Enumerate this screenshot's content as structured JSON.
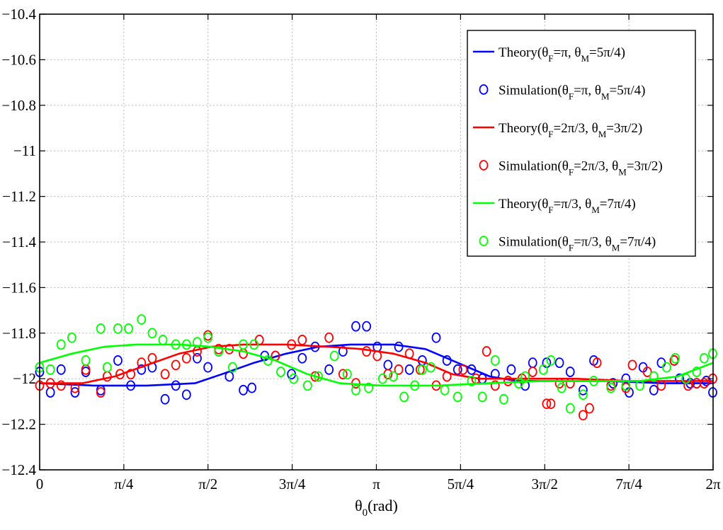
{
  "chart_data": {
    "type": "line",
    "title": "",
    "xlabel": "θ",
    "xlabel_sub": "0",
    "xlabel_unit": "(rad)",
    "ylabel": "",
    "xlim": [
      0,
      6.283185
    ],
    "ylim": [
      -12.4,
      -10.4
    ],
    "grid": true,
    "legend_position": "top-right",
    "x_ticks": [
      {
        "value": 0,
        "label": "0"
      },
      {
        "value": 0.785398,
        "label": "π/4"
      },
      {
        "value": 1.570796,
        "label": "π/2"
      },
      {
        "value": 2.356194,
        "label": "3π/4"
      },
      {
        "value": 3.141593,
        "label": "π"
      },
      {
        "value": 3.926991,
        "label": "5π/4"
      },
      {
        "value": 4.712389,
        "label": "3π/2"
      },
      {
        "value": 5.497787,
        "label": "7π/4"
      },
      {
        "value": 6.283185,
        "label": "2π"
      }
    ],
    "y_ticks": [
      {
        "value": -10.4,
        "label": "−10.4"
      },
      {
        "value": -10.6,
        "label": "−10.6"
      },
      {
        "value": -10.8,
        "label": "−10.8"
      },
      {
        "value": -11,
        "label": "−11"
      },
      {
        "value": -11.2,
        "label": "−11.2"
      },
      {
        "value": -11.4,
        "label": "−11.4"
      },
      {
        "value": -11.6,
        "label": "−11.6"
      },
      {
        "value": -11.8,
        "label": "−11.8"
      },
      {
        "value": -12,
        "label": "−12"
      },
      {
        "value": -12.2,
        "label": "−12.2"
      },
      {
        "value": -12.4,
        "label": "−12.4"
      }
    ],
    "series": [
      {
        "name": "Theory(θF=π, θM=5π/4)",
        "legend": {
          "prefix": "Theory(θ",
          "sub1": "F",
          "mid": "=π, θ",
          "sub2": "M",
          "suffix": "=5π/4)"
        },
        "kind": "line",
        "color": "#0000ff",
        "points": [
          [
            0,
            -12.02
          ],
          [
            0.5,
            -12.03
          ],
          [
            1.0,
            -12.03
          ],
          [
            1.45,
            -12.02
          ],
          [
            1.7,
            -11.98
          ],
          [
            2.0,
            -11.93
          ],
          [
            2.3,
            -11.89
          ],
          [
            2.6,
            -11.86
          ],
          [
            2.9,
            -11.85
          ],
          [
            3.3,
            -11.85
          ],
          [
            3.6,
            -11.87
          ],
          [
            3.9,
            -11.93
          ],
          [
            4.2,
            -11.99
          ],
          [
            4.45,
            -12.01
          ],
          [
            4.8,
            -12.01
          ],
          [
            5.3,
            -12.01
          ],
          [
            5.8,
            -12.02
          ],
          [
            6.283,
            -12.02
          ]
        ]
      },
      {
        "name": "Simulation(θF=π, θM=5π/4)",
        "legend": {
          "prefix": "Simulation(θ",
          "sub1": "F",
          "mid": "=π, θ",
          "sub2": "M",
          "suffix": "=5π/4)"
        },
        "kind": "markers",
        "color": "#0000ff",
        "points": [
          [
            0.0,
            -11.97
          ],
          [
            0.1,
            -12.06
          ],
          [
            0.2,
            -11.96
          ],
          [
            0.33,
            -12.06
          ],
          [
            0.43,
            -11.97
          ],
          [
            0.57,
            -12.05
          ],
          [
            0.73,
            -11.92
          ],
          [
            0.85,
            -12.03
          ],
          [
            0.95,
            -11.96
          ],
          [
            1.05,
            -11.95
          ],
          [
            1.17,
            -12.09
          ],
          [
            1.27,
            -12.03
          ],
          [
            1.37,
            -12.07
          ],
          [
            1.47,
            -11.91
          ],
          [
            1.57,
            -11.95
          ],
          [
            1.67,
            -11.88
          ],
          [
            1.77,
            -11.99
          ],
          [
            1.9,
            -12.05
          ],
          [
            1.98,
            -12.04
          ],
          [
            2.1,
            -11.9
          ],
          [
            2.2,
            -11.9
          ],
          [
            2.35,
            -11.98
          ],
          [
            2.45,
            -11.91
          ],
          [
            2.57,
            -11.86
          ],
          [
            2.7,
            -11.96
          ],
          [
            2.83,
            -11.88
          ],
          [
            2.95,
            -11.77
          ],
          [
            3.05,
            -11.77
          ],
          [
            3.15,
            -11.86
          ],
          [
            3.25,
            -11.94
          ],
          [
            3.35,
            -11.86
          ],
          [
            3.45,
            -11.96
          ],
          [
            3.57,
            -11.92
          ],
          [
            3.7,
            -11.82
          ],
          [
            3.8,
            -11.92
          ],
          [
            3.9,
            -11.96
          ],
          [
            4.03,
            -11.96
          ],
          [
            4.13,
            -12.0
          ],
          [
            4.25,
            -11.98
          ],
          [
            4.4,
            -11.96
          ],
          [
            4.53,
            -12.03
          ],
          [
            4.6,
            -11.93
          ],
          [
            4.73,
            -11.93
          ],
          [
            4.85,
            -11.93
          ],
          [
            4.95,
            -11.97
          ],
          [
            5.07,
            -12.05
          ],
          [
            5.17,
            -11.92
          ],
          [
            5.35,
            -12.02
          ],
          [
            5.47,
            -12.0
          ],
          [
            5.5,
            -12.06
          ],
          [
            5.63,
            -11.95
          ],
          [
            5.73,
            -12.05
          ],
          [
            5.8,
            -11.93
          ],
          [
            5.92,
            -11.92
          ],
          [
            5.97,
            -12.0
          ],
          [
            6.07,
            -12.02
          ],
          [
            6.13,
            -12.02
          ],
          [
            6.22,
            -12.01
          ],
          [
            6.28,
            -12.06
          ]
        ]
      },
      {
        "name": "Theory(θF=2π/3, θM=3π/2)",
        "legend": {
          "prefix": "Theory(θ",
          "sub1": "F",
          "mid": "=2π/3, θ",
          "sub2": "M",
          "suffix": "=3π/2)"
        },
        "kind": "line",
        "color": "#ff0000",
        "points": [
          [
            0,
            -12.02
          ],
          [
            0.4,
            -12.02
          ],
          [
            0.7,
            -11.99
          ],
          [
            1.0,
            -11.94
          ],
          [
            1.3,
            -11.89
          ],
          [
            1.6,
            -11.86
          ],
          [
            1.9,
            -11.85
          ],
          [
            2.3,
            -11.85
          ],
          [
            2.7,
            -11.86
          ],
          [
            3.0,
            -11.87
          ],
          [
            3.3,
            -11.89
          ],
          [
            3.6,
            -11.93
          ],
          [
            3.85,
            -11.98
          ],
          [
            4.1,
            -12.0
          ],
          [
            4.5,
            -12.0
          ],
          [
            5.0,
            -12.0
          ],
          [
            5.5,
            -12.01
          ],
          [
            6.0,
            -12.01
          ],
          [
            6.283,
            -12.01
          ]
        ]
      },
      {
        "name": "Simulation(θF=2π/3, θM=3π/2)",
        "legend": {
          "prefix": "Simulation(θ",
          "sub1": "F",
          "mid": "=2π/3, θ",
          "sub2": "M",
          "suffix": "=3π/2)"
        },
        "kind": "markers",
        "color": "#ff0000",
        "points": [
          [
            0.0,
            -12.03
          ],
          [
            0.1,
            -12.02
          ],
          [
            0.2,
            -12.03
          ],
          [
            0.33,
            -12.04
          ],
          [
            0.43,
            -11.96
          ],
          [
            0.57,
            -12.06
          ],
          [
            0.63,
            -11.99
          ],
          [
            0.75,
            -11.98
          ],
          [
            0.85,
            -11.98
          ],
          [
            0.95,
            -11.93
          ],
          [
            1.05,
            -11.91
          ],
          [
            1.17,
            -11.98
          ],
          [
            1.27,
            -11.94
          ],
          [
            1.37,
            -11.91
          ],
          [
            1.47,
            -11.88
          ],
          [
            1.57,
            -11.81
          ],
          [
            1.67,
            -11.87
          ],
          [
            1.77,
            -11.87
          ],
          [
            1.9,
            -11.89
          ],
          [
            2.05,
            -11.83
          ],
          [
            2.2,
            -11.9
          ],
          [
            2.35,
            -11.85
          ],
          [
            2.45,
            -11.83
          ],
          [
            2.57,
            -11.99
          ],
          [
            2.7,
            -11.82
          ],
          [
            2.83,
            -11.98
          ],
          [
            2.95,
            -12.02
          ],
          [
            3.05,
            -11.88
          ],
          [
            3.15,
            -11.9
          ],
          [
            3.25,
            -11.98
          ],
          [
            3.35,
            -11.96
          ],
          [
            3.45,
            -11.89
          ],
          [
            3.55,
            -11.96
          ],
          [
            3.7,
            -12.03
          ],
          [
            3.8,
            -11.99
          ],
          [
            3.95,
            -11.96
          ],
          [
            4.07,
            -12.0
          ],
          [
            4.17,
            -11.88
          ],
          [
            4.25,
            -12.03
          ],
          [
            4.37,
            -12.01
          ],
          [
            4.5,
            -12.0
          ],
          [
            4.6,
            -11.97
          ],
          [
            4.73,
            -12.11
          ],
          [
            4.77,
            -12.11
          ],
          [
            4.85,
            -12.02
          ],
          [
            4.95,
            -12.02
          ],
          [
            5.07,
            -12.16
          ],
          [
            5.13,
            -12.13
          ],
          [
            5.2,
            -11.93
          ],
          [
            5.33,
            -12.03
          ],
          [
            5.47,
            -12.04
          ],
          [
            5.53,
            -11.94
          ],
          [
            5.67,
            -11.97
          ],
          [
            5.8,
            -12.03
          ],
          [
            5.92,
            -11.92
          ],
          [
            6.05,
            -12.03
          ],
          [
            6.13,
            -12.02
          ],
          [
            6.2,
            -12.02
          ],
          [
            6.28,
            -12.0
          ]
        ]
      },
      {
        "name": "Theory(θF=π/3, θM=7π/4)",
        "legend": {
          "prefix": "Theory(θ",
          "sub1": "F",
          "mid": "=π/3, θ",
          "sub2": "M",
          "suffix": "=7π/4)"
        },
        "kind": "line",
        "color": "#00ff00",
        "points": [
          [
            0,
            -11.93
          ],
          [
            0.3,
            -11.89
          ],
          [
            0.6,
            -11.86
          ],
          [
            0.9,
            -11.85
          ],
          [
            1.3,
            -11.85
          ],
          [
            1.6,
            -11.86
          ],
          [
            1.9,
            -11.88
          ],
          [
            2.2,
            -11.92
          ],
          [
            2.5,
            -11.98
          ],
          [
            2.8,
            -12.02
          ],
          [
            3.2,
            -12.03
          ],
          [
            3.7,
            -12.03
          ],
          [
            4.2,
            -12.02
          ],
          [
            4.7,
            -12.01
          ],
          [
            5.2,
            -12.01
          ],
          [
            5.6,
            -12.01
          ],
          [
            5.95,
            -11.99
          ],
          [
            6.283,
            -11.93
          ]
        ]
      },
      {
        "name": "Simulation(θF=π/3, θM=7π/4)",
        "legend": {
          "prefix": "Simulation(θ",
          "sub1": "F",
          "mid": "=π/3, θ",
          "sub2": "M",
          "suffix": "=7π/4)"
        },
        "kind": "markers",
        "color": "#00ff00",
        "points": [
          [
            0.0,
            -11.95
          ],
          [
            0.1,
            -11.96
          ],
          [
            0.2,
            -11.85
          ],
          [
            0.3,
            -11.82
          ],
          [
            0.43,
            -11.92
          ],
          [
            0.57,
            -11.78
          ],
          [
            0.63,
            -11.95
          ],
          [
            0.73,
            -11.78
          ],
          [
            0.83,
            -11.78
          ],
          [
            0.95,
            -11.74
          ],
          [
            1.05,
            -11.8
          ],
          [
            1.15,
            -11.83
          ],
          [
            1.27,
            -11.85
          ],
          [
            1.37,
            -11.85
          ],
          [
            1.47,
            -11.84
          ],
          [
            1.57,
            -11.82
          ],
          [
            1.67,
            -11.88
          ],
          [
            1.8,
            -11.95
          ],
          [
            1.9,
            -11.85
          ],
          [
            2.0,
            -11.85
          ],
          [
            2.13,
            -11.92
          ],
          [
            2.25,
            -11.97
          ],
          [
            2.37,
            -12.0
          ],
          [
            2.5,
            -12.03
          ],
          [
            2.6,
            -11.99
          ],
          [
            2.75,
            -11.9
          ],
          [
            2.87,
            -11.98
          ],
          [
            2.95,
            -12.05
          ],
          [
            3.07,
            -12.04
          ],
          [
            3.2,
            -12.0
          ],
          [
            3.3,
            -11.99
          ],
          [
            3.4,
            -12.08
          ],
          [
            3.5,
            -12.03
          ],
          [
            3.57,
            -11.96
          ],
          [
            3.65,
            -11.95
          ],
          [
            3.78,
            -12.05
          ],
          [
            3.9,
            -12.08
          ],
          [
            4.03,
            -12.01
          ],
          [
            4.13,
            -12.08
          ],
          [
            4.25,
            -11.92
          ],
          [
            4.33,
            -12.09
          ],
          [
            4.47,
            -12.02
          ],
          [
            4.53,
            -11.99
          ],
          [
            4.7,
            -11.96
          ],
          [
            4.77,
            -11.92
          ],
          [
            4.87,
            -12.04
          ],
          [
            4.95,
            -12.13
          ],
          [
            5.07,
            -12.07
          ],
          [
            5.17,
            -12.01
          ],
          [
            5.33,
            -12.04
          ],
          [
            5.47,
            -12.03
          ],
          [
            5.6,
            -12.03
          ],
          [
            5.73,
            -11.99
          ],
          [
            5.85,
            -11.95
          ],
          [
            5.93,
            -11.91
          ],
          [
            6.03,
            -12.0
          ],
          [
            6.13,
            -11.97
          ],
          [
            6.2,
            -11.91
          ],
          [
            6.28,
            -11.89
          ]
        ]
      }
    ]
  }
}
